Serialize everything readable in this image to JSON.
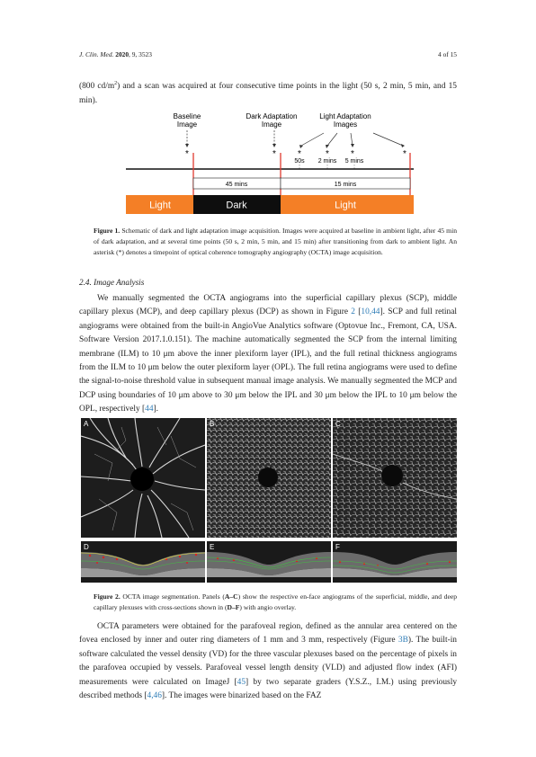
{
  "header": {
    "journal": "J. Clin. Med.",
    "year": "2020",
    "volinfo": ", 9, 3523",
    "page": "4 of 15"
  },
  "para1": {
    "text_a": "(800 cd/m",
    "sup": "2",
    "text_b": ") and a scan was acquired at four consecutive time points in the light (50 s, 2 min, 5 min, and 15 min)."
  },
  "figure1": {
    "baseline": "Baseline",
    "image": "Image",
    "dark_adaptation": "Dark Adaptation",
    "light_adaptation": "Light Adaptation",
    "images": "Images",
    "t1": "50s",
    "t2": "2 mins",
    "t3": "5 mins",
    "seg_45": "45 mins",
    "seg_15": "15 mins",
    "bar_light1": "Light",
    "bar_dark": "Dark",
    "bar_light2": "Light",
    "star": "*",
    "caption_label": "Figure 1.",
    "caption": "Schematic of dark and light adaptation image acquisition. Images were acquired at baseline in ambient light, after 45 min of dark adaptation, and at several time points (50 s, 2 min, 5 min, and 15 min) after transitioning from dark to ambient light. An asterisk (*) denotes a timepoint of optical coherence tomography angiography (OCTA) image acquisition."
  },
  "section": {
    "heading": "2.4. Image Analysis"
  },
  "para2": {
    "a": "We manually segmented the OCTA angiograms into the superficial capillary plexus (SCP), middle capillary plexus (MCP), and deep capillary plexus (DCP) as shown in Figure ",
    "ref1": "2",
    "b": " [",
    "ref2": "10,44",
    "c": "]. SCP and full retinal angiograms were obtained from the built-in AngioVue Analytics software (Optovue Inc., Fremont, CA, USA. Software Version 2017.1.0.151). The machine automatically segmented the SCP from the internal limiting membrane (ILM) to 10 μm above the inner plexiform layer (IPL), and the full retinal thickness angiograms from the ILM to 10 μm below the outer plexiform layer (OPL). The full retina angiograms were used to define the signal-to-noise threshold value in subsequent manual image analysis. We manually segmented the MCP and DCP using boundaries of 10 μm above to 30 μm below the IPL and 30 μm below the IPL to 10 μm below the OPL, respectively [",
    "ref3": "44",
    "d": "]."
  },
  "figure2": {
    "panels": [
      "A",
      "B",
      "C",
      "D",
      "E",
      "F"
    ],
    "caption_label": "Figure 2.",
    "caption_a": "OCTA image segmentation. Panels (",
    "caption_ac": "A–C",
    "caption_b": ") show the respective en-face angiograms of the superficial, middle, and deep capillary plexuses with cross-sections shown in (",
    "caption_df": "D–F",
    "caption_c": ") with angio overlay."
  },
  "para3": {
    "a": "OCTA parameters were obtained for the parafoveal region, defined as the annular area centered on the fovea enclosed by inner and outer ring diameters of 1 mm and 3 mm, respectively (Figure ",
    "ref1": "3B",
    "b": "). The built-in software calculated the vessel density (VD) for the three vascular plexuses based on the percentage of pixels in the parafovea occupied by vessels. Parafoveal vessel length density (VLD) and adjusted flow index (AFI) measurements were calculated on ImageJ [",
    "ref2": "45",
    "c": "] by two separate graders (Y.S.Z., I.M.) using previously described methods [",
    "ref3": "4,46",
    "d": "]. The images were binarized based on the FAZ"
  }
}
